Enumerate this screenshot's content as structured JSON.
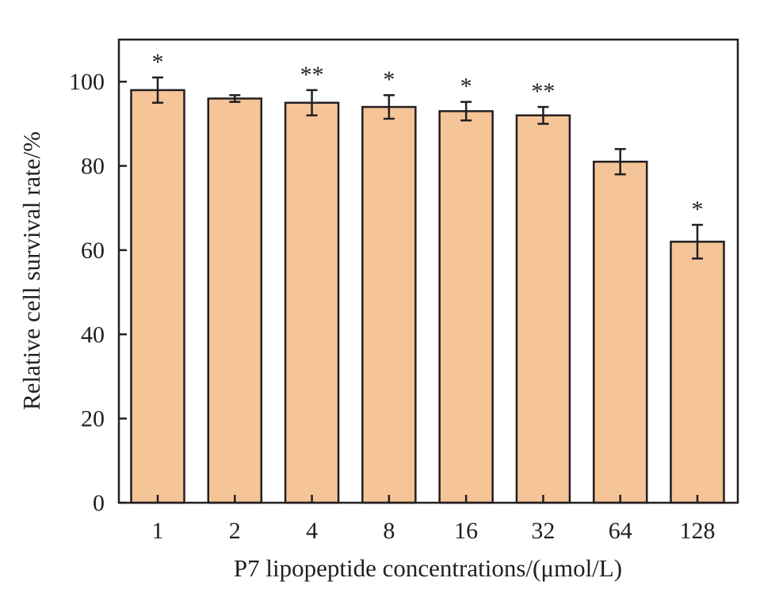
{
  "chart_data": {
    "type": "bar",
    "categories": [
      "1",
      "2",
      "4",
      "8",
      "16",
      "32",
      "64",
      "128"
    ],
    "values": [
      98,
      96,
      95,
      94,
      93,
      92,
      81,
      62
    ],
    "errors": [
      3,
      0.8,
      3,
      2.8,
      2.2,
      2,
      3,
      4
    ],
    "significance": [
      "*",
      "",
      "**",
      "*",
      "*",
      "**",
      "",
      "*"
    ],
    "xlabel": "P7 lipopeptide concentrations/(μmol/L)",
    "ylabel": "Relative cell survival rate/%",
    "ylim": [
      0,
      110
    ],
    "yticks": [
      "0",
      "20",
      "40",
      "60",
      "80",
      "100"
    ],
    "grid": false,
    "colors": {
      "bar_fill": "#f5c497",
      "bar_stroke": "#231f20",
      "axis": "#231f20"
    }
  }
}
